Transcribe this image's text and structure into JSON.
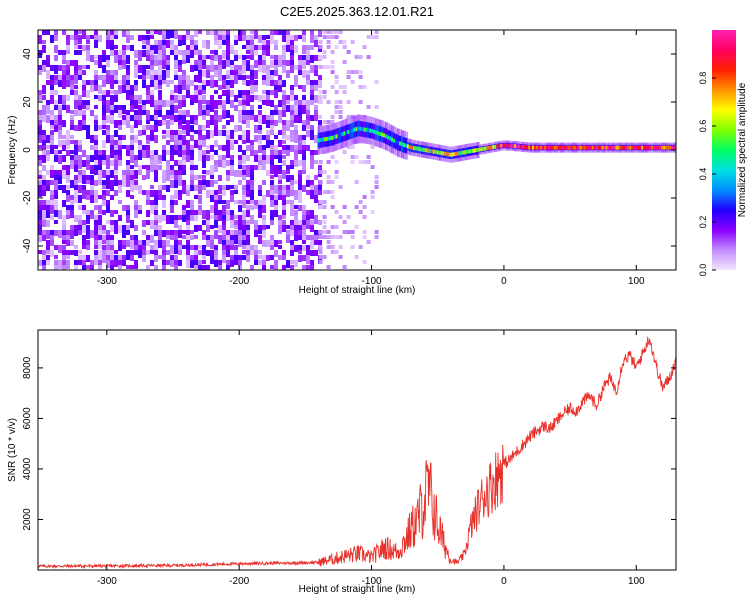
{
  "title": "C2E5.2025.363.12.01.R21",
  "chart_data": [
    {
      "type": "heatmap",
      "xlabel": "Height of straight line (km)",
      "ylabel": "Frequency (Hz)",
      "xlim": [
        -352,
        130
      ],
      "ylim": [
        -50,
        50
      ],
      "x_ticks": [
        -300,
        -200,
        -100,
        0,
        100
      ],
      "y_ticks": [
        -40,
        -20,
        0,
        20,
        40
      ],
      "noise_region_x": [
        -352,
        -140
      ],
      "transition_region_x": [
        -140,
        -95
      ],
      "signal_track": [
        {
          "x": -140,
          "y": 4
        },
        {
          "x": -130,
          "y": 5
        },
        {
          "x": -120,
          "y": 7
        },
        {
          "x": -110,
          "y": 9
        },
        {
          "x": -100,
          "y": 8
        },
        {
          "x": -90,
          "y": 6
        },
        {
          "x": -80,
          "y": 3
        },
        {
          "x": -70,
          "y": 1
        },
        {
          "x": -60,
          "y": 0
        },
        {
          "x": -50,
          "y": -1
        },
        {
          "x": -40,
          "y": -2
        },
        {
          "x": -30,
          "y": -1
        },
        {
          "x": -20,
          "y": 0
        },
        {
          "x": -10,
          "y": 1
        },
        {
          "x": 0,
          "y": 2
        },
        {
          "x": 20,
          "y": 1
        },
        {
          "x": 40,
          "y": 1
        },
        {
          "x": 60,
          "y": 1
        },
        {
          "x": 80,
          "y": 1
        },
        {
          "x": 100,
          "y": 1
        },
        {
          "x": 130,
          "y": 1
        }
      ],
      "colorbar": {
        "label": "Normalized spectral amplitude",
        "range": [
          0.0,
          1.0
        ],
        "ticks": [
          "0.0",
          "0.2",
          "0.4",
          "0.6",
          "0.8"
        ],
        "colors": [
          "#f4e4ff",
          "#c28cff",
          "#8a00ff",
          "#2200ff",
          "#0090ff",
          "#00e0e0",
          "#00ff60",
          "#80ff00",
          "#ffff00",
          "#ff9000",
          "#ff2000",
          "#ff0060",
          "#ff20b0"
        ]
      }
    },
    {
      "type": "line",
      "xlabel": "Height of straight line (km)",
      "ylabel": "SNR (10 * v/v)",
      "xlim": [
        -352,
        130
      ],
      "ylim": [
        0,
        9500
      ],
      "x_ticks": [
        -300,
        -200,
        -100,
        0,
        100
      ],
      "y_ticks": [
        2000,
        4000,
        6000,
        8000
      ],
      "color": "#e8302a",
      "series": [
        {
          "x": [
            -352,
            -300,
            -250,
            -200,
            -160,
            -140,
            -120,
            -110,
            -100,
            -90,
            -80,
            -70,
            -65,
            -60,
            -57,
            -54,
            -50,
            -45,
            -40,
            -35,
            -30,
            -25,
            -20,
            -15,
            -10,
            -5,
            0,
            5,
            10,
            15,
            20,
            25,
            30,
            35,
            40,
            45,
            50,
            55,
            60,
            65,
            70,
            75,
            80,
            85,
            90,
            95,
            100,
            105,
            110,
            115,
            120,
            125,
            130
          ],
          "y": [
            150,
            160,
            180,
            250,
            280,
            300,
            550,
            650,
            500,
            900,
            700,
            1600,
            2000,
            2800,
            3200,
            2600,
            1800,
            1000,
            400,
            300,
            600,
            1700,
            2400,
            3000,
            3300,
            3700,
            4200,
            4400,
            4700,
            5000,
            5300,
            5500,
            5700,
            5600,
            5900,
            6200,
            6400,
            6300,
            6700,
            6900,
            6500,
            7200,
            7600,
            7100,
            8300,
            8500,
            8000,
            8600,
            9200,
            8100,
            7200,
            7600,
            8300
          ]
        }
      ]
    }
  ]
}
